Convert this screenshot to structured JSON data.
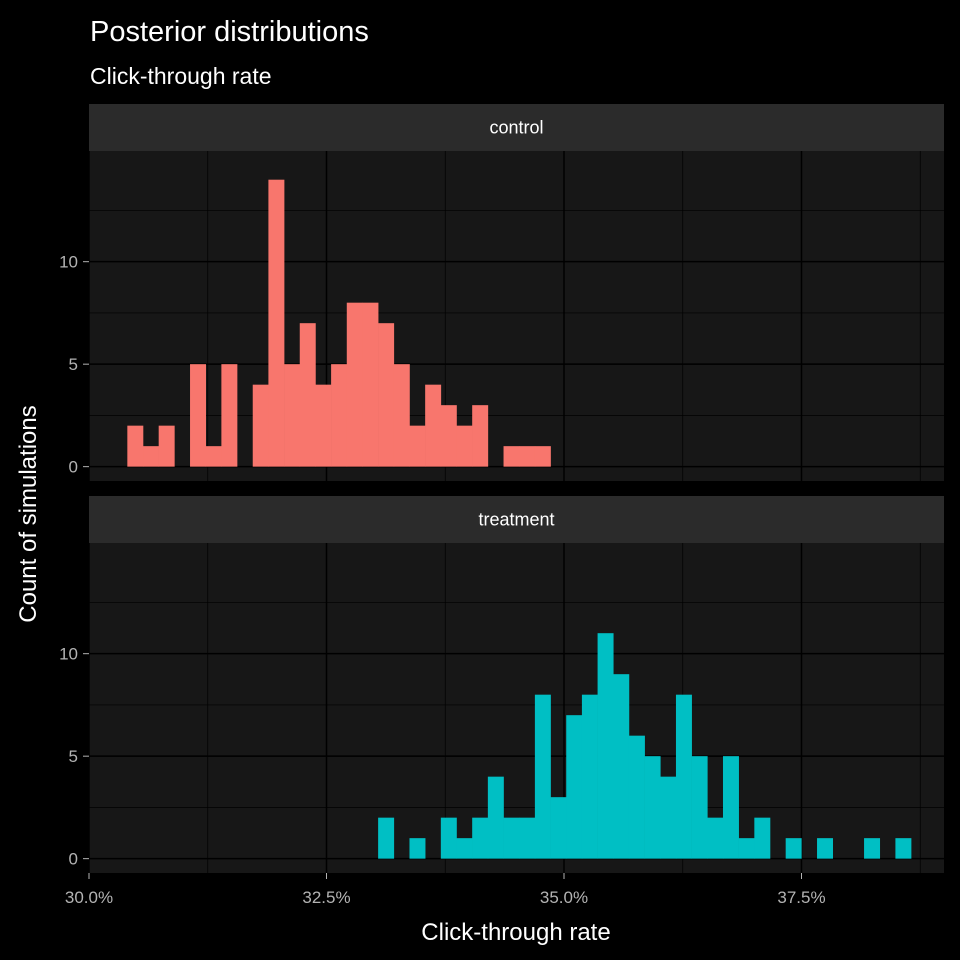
{
  "chart_data": {
    "type": "bar",
    "title": "Posterior distributions",
    "subtitle": "Click-through rate",
    "xlabel": "Click-through rate",
    "ylabel": "Count of simulations",
    "xlim": [
      0.3,
      0.39
    ],
    "ylim": [
      -0.7,
      15.4
    ],
    "x_ticks": [
      0.3,
      0.325,
      0.35,
      0.375
    ],
    "x_tick_labels": [
      "30.0%",
      "32.5%",
      "35.0%",
      "37.5%"
    ],
    "y_ticks": [
      0,
      5,
      10
    ],
    "y_tick_labels": [
      "0",
      "5",
      "10"
    ],
    "bin_width": 0.00165,
    "grid": true,
    "colors": {
      "background": "#000000",
      "panel": "#171717",
      "strip": "#2b2b2b",
      "control": "#f8766d",
      "treatment": "#00bfc4"
    },
    "series": [
      {
        "name": "control",
        "bin_centers": [
          0.30486,
          0.30651,
          0.30816,
          0.30981,
          0.31146,
          0.31311,
          0.31476,
          0.31641,
          0.31806,
          0.31971,
          0.32136,
          0.32301,
          0.32466,
          0.32631,
          0.32796,
          0.32961,
          0.33126,
          0.33291,
          0.33456,
          0.33621,
          0.33786,
          0.33951,
          0.34116,
          0.34281,
          0.34446,
          0.34611,
          0.34776
        ],
        "values": [
          2,
          1,
          2,
          0,
          5,
          1,
          5,
          0,
          4,
          14,
          5,
          7,
          4,
          5,
          8,
          8,
          7,
          5,
          2,
          4,
          3,
          2,
          3,
          0,
          1,
          1,
          1
        ]
      },
      {
        "name": "treatment",
        "bin_centers": [
          0.33126,
          0.33291,
          0.33456,
          0.33621,
          0.33786,
          0.33951,
          0.34116,
          0.34281,
          0.34446,
          0.34611,
          0.34776,
          0.34941,
          0.35106,
          0.35271,
          0.35436,
          0.35601,
          0.35766,
          0.35931,
          0.36096,
          0.36261,
          0.36426,
          0.36591,
          0.36756,
          0.36921,
          0.37086,
          0.37251,
          0.37416,
          0.37581,
          0.37746,
          0.37911,
          0.38076,
          0.38241,
          0.38406,
          0.38571
        ],
        "values": [
          2,
          0,
          1,
          0,
          2,
          1,
          2,
          4,
          2,
          2,
          8,
          3,
          7,
          8,
          11,
          9,
          6,
          5,
          4,
          8,
          5,
          2,
          5,
          1,
          2,
          0,
          1,
          0,
          1,
          0,
          0,
          1,
          0,
          1
        ]
      }
    ]
  }
}
